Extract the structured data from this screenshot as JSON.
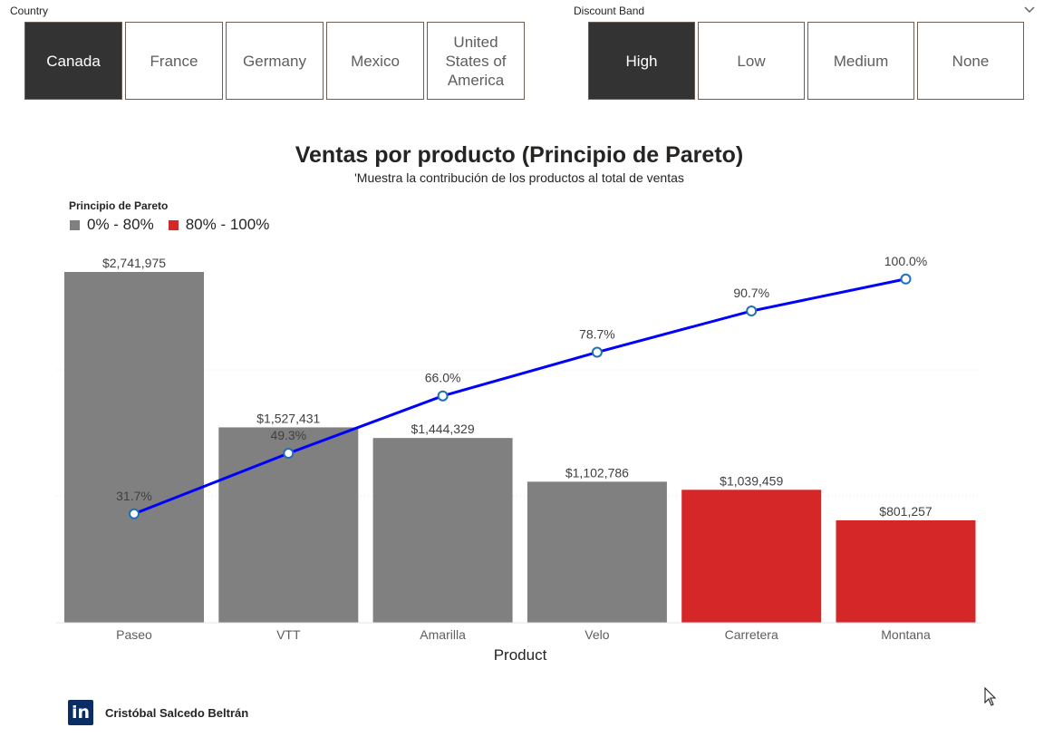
{
  "slicers": {
    "country": {
      "title": "Country",
      "options": [
        "Canada",
        "France",
        "Germany",
        "Mexico",
        "United States of America"
      ],
      "selected": "Canada"
    },
    "discount": {
      "title": "Discount Band",
      "options": [
        "High",
        "Low",
        "Medium",
        "None"
      ],
      "selected": "High"
    }
  },
  "chart_data": {
    "type": "bar",
    "title": "Ventas por producto (Principio de Pareto)",
    "subtitle": "'Muestra la contribución de los productos al total de ventas",
    "xlabel": "Product",
    "ylabel": "",
    "categories": [
      "Paseo",
      "VTT",
      "Amarilla",
      "Velo",
      "Carretera",
      "Montana"
    ],
    "series": [
      {
        "values": [
          2741975,
          1527431,
          1444329,
          1102786,
          1039459,
          801257
        ],
        "labels": [
          "$2,741,975",
          "$1,527,431",
          "$1,444,329",
          "$1,102,786",
          "$1,039,459",
          "$801,257"
        ],
        "groups": [
          "0% - 80%",
          "0% - 80%",
          "0% - 80%",
          "0% - 80%",
          "80% - 100%",
          "80% - 100%"
        ]
      },
      {
        "type": "line",
        "values": [
          31.7,
          49.3,
          66.0,
          78.7,
          90.7,
          100.0
        ],
        "labels": [
          "31.7%",
          "49.3%",
          "66.0%",
          "78.7%",
          "90.7%",
          "100.0%"
        ],
        "color": "#0000ff"
      }
    ],
    "legend": {
      "title": "Principio de Pareto",
      "position": "top-left",
      "items": [
        {
          "name": "0% - 80%",
          "color": "#808080"
        },
        {
          "name": "80% - 100%",
          "color": "#d62728"
        }
      ]
    },
    "ylim": [
      0,
      2741975
    ],
    "y2lim": [
      0,
      130
    ],
    "grid": true
  },
  "footer": {
    "logo_icon": "linkedin-icon",
    "logo_text": "in",
    "author": "Cristóbal Salcedo Beltrán"
  }
}
